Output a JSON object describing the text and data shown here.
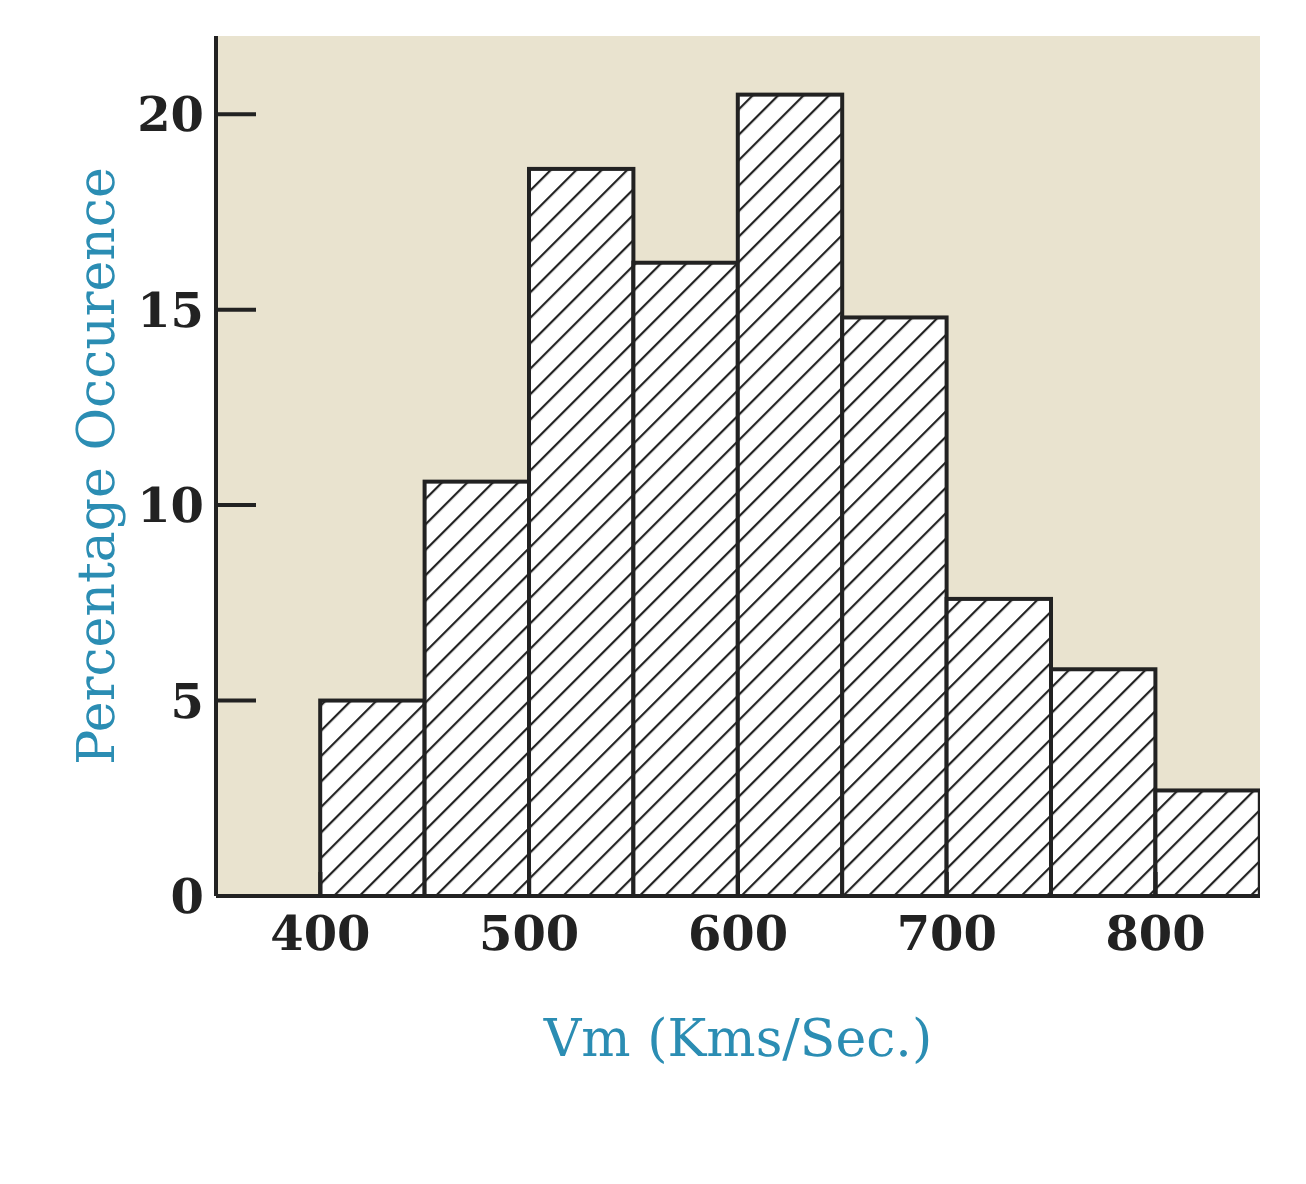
{
  "chart_data": {
    "type": "histogram",
    "xlabel": "Vm (Kms/Sec.)",
    "ylabel": "Percentage Occurence",
    "bins": [
      400,
      450,
      500,
      550,
      600,
      650,
      700,
      750,
      800,
      850
    ],
    "values": [
      5.0,
      10.6,
      18.6,
      16.2,
      20.5,
      14.8,
      7.6,
      5.8,
      2.7
    ],
    "color": "#222222",
    "xlim": [
      350,
      850
    ],
    "xticks": [
      400,
      500,
      600,
      700,
      800
    ],
    "ylim": [
      0,
      22
    ],
    "yticks": [
      0,
      5,
      10,
      15,
      20
    ],
    "grid": false
  }
}
